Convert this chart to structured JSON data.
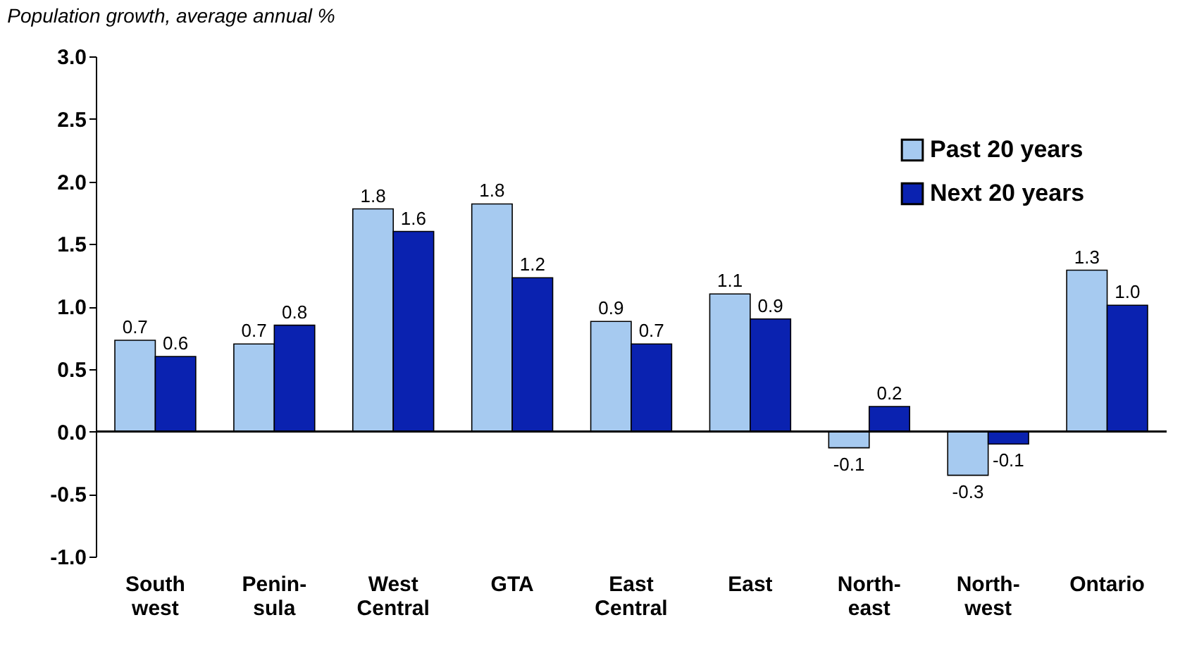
{
  "chart_data": {
    "type": "bar",
    "title": "Population growth, average annual %",
    "categories": [
      "South\nwest",
      "Penin-\nsula",
      "West\nCentral",
      "GTA",
      "East\nCentral",
      "East",
      "North-\neast",
      "North-\nwest",
      "Ontario"
    ],
    "series": [
      {
        "name": "Past 20 years",
        "color": "#a6caf0",
        "values": [
          0.73,
          0.7,
          1.78,
          1.82,
          0.88,
          1.1,
          -0.13,
          -0.35,
          1.29
        ],
        "value_labels": [
          "0.7",
          "0.7",
          "1.8",
          "1.8",
          "0.9",
          "1.1",
          "-0.1",
          "-0.3",
          "1.3"
        ]
      },
      {
        "name": "Next 20 years",
        "color": "#0a22b0",
        "values": [
          0.6,
          0.85,
          1.6,
          1.23,
          0.7,
          0.9,
          0.2,
          -0.1,
          1.01
        ],
        "value_labels": [
          "0.6",
          "0.8",
          "1.6",
          "1.2",
          "0.7",
          "0.9",
          "0.2",
          "-0.1",
          "1.0"
        ]
      }
    ],
    "ylim": [
      -1.0,
      3.0
    ],
    "yticks": [
      {
        "value": -1,
        "label": "-1.0"
      },
      {
        "value": -0.5,
        "label": "-0.5"
      },
      {
        "value": 0,
        "label": "0.0"
      },
      {
        "value": 0.5,
        "label": "0.5"
      },
      {
        "value": 1,
        "label": "1.0"
      },
      {
        "value": 1.5,
        "label": "1.5"
      },
      {
        "value": 2,
        "label": "2.0"
      },
      {
        "value": 2.5,
        "label": "2.5"
      },
      {
        "value": 3,
        "label": "3.0"
      }
    ],
    "legend": "top right"
  }
}
